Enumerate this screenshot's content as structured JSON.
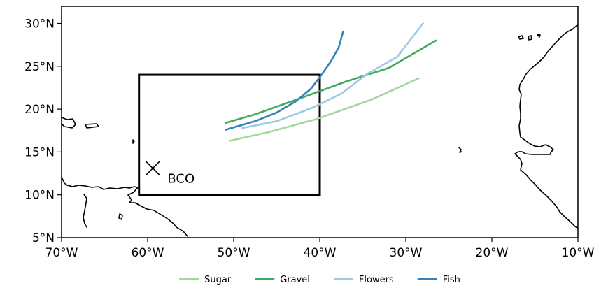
{
  "chart_data": {
    "type": "line",
    "title": "",
    "xlabel": "",
    "ylabel": "",
    "xlim": [
      -70,
      -10
    ],
    "ylim": [
      5,
      32
    ],
    "x_ticks": [
      {
        "value": -70,
        "label": "70°W"
      },
      {
        "value": -60,
        "label": "60°W"
      },
      {
        "value": -50,
        "label": "50°W"
      },
      {
        "value": -40,
        "label": "40°W"
      },
      {
        "value": -30,
        "label": "30°W"
      },
      {
        "value": -20,
        "label": "20°W"
      },
      {
        "value": -10,
        "label": "10°W"
      }
    ],
    "y_ticks": [
      {
        "value": 5,
        "label": "5°N"
      },
      {
        "value": 10,
        "label": "10°N"
      },
      {
        "value": 15,
        "label": "15°N"
      },
      {
        "value": 20,
        "label": "20°N"
      },
      {
        "value": 25,
        "label": "25°N"
      },
      {
        "value": 30,
        "label": "30°N"
      }
    ],
    "region_box": {
      "lon_min": -61,
      "lon_max": -40,
      "lat_min": 10,
      "lat_max": 24
    },
    "site": {
      "label": "BCO",
      "lon": -59.4,
      "lat": 13.1
    },
    "legend_position": "bottom",
    "series": [
      {
        "name": "Sugar",
        "color": "#a1d99b",
        "points": [
          [
            -50.5,
            16.3
          ],
          [
            -46,
            17.3
          ],
          [
            -40.5,
            18.8
          ],
          [
            -34,
            21.1
          ],
          [
            -28.5,
            23.6
          ]
        ]
      },
      {
        "name": "Gravel",
        "color": "#41ab5d",
        "points": [
          [
            -50.9,
            18.4
          ],
          [
            -47.5,
            19.4
          ],
          [
            -43,
            21.0
          ],
          [
            -37,
            23.2
          ],
          [
            -32,
            24.8
          ],
          [
            -26.5,
            28.0
          ]
        ]
      },
      {
        "name": "Flowers",
        "color": "#9ecae1",
        "points": [
          [
            -49,
            17.8
          ],
          [
            -45,
            18.6
          ],
          [
            -41,
            20.1
          ],
          [
            -37.5,
            21.8
          ],
          [
            -34.5,
            24.1
          ],
          [
            -31,
            26.1
          ],
          [
            -28,
            30.0
          ]
        ]
      },
      {
        "name": "Fish",
        "color": "#3182bd",
        "points": [
          [
            -50.9,
            17.6
          ],
          [
            -47.5,
            18.6
          ],
          [
            -45,
            19.6
          ],
          [
            -42.8,
            20.9
          ],
          [
            -41,
            22.4
          ],
          [
            -39.8,
            24.0
          ],
          [
            -38.7,
            25.6
          ],
          [
            -37.8,
            27.2
          ],
          [
            -37.3,
            29.0
          ]
        ]
      }
    ]
  }
}
